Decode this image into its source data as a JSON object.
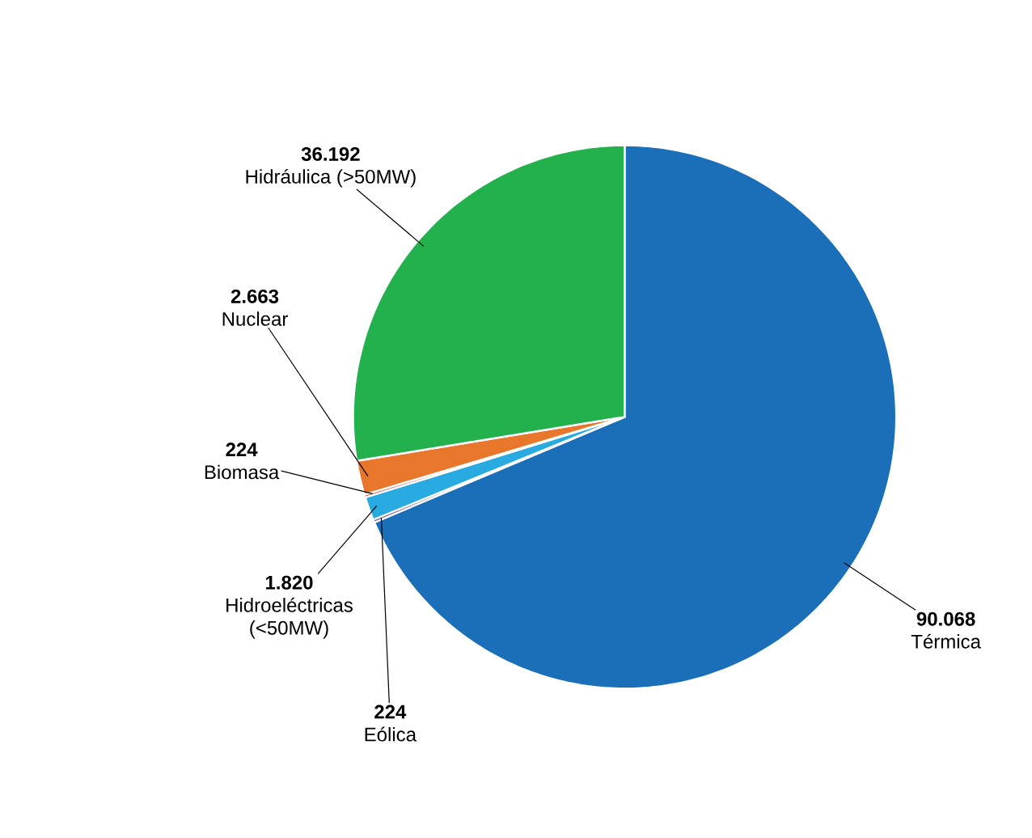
{
  "chart_data": {
    "type": "pie",
    "categories": [
      "Térmica",
      "Eólica",
      "Hidroeléctricas (<50MW)",
      "Biomasa",
      "Nuclear",
      "Hidráulica (>50MW)"
    ],
    "values": [
      90068,
      224,
      1820,
      224,
      2663,
      36192
    ],
    "value_labels": [
      "90.068",
      "224",
      "1.820",
      "224",
      "2.663",
      "36.192"
    ],
    "colors": [
      "#1a6fb8",
      "#6a3d9a",
      "#29aae1",
      "#e8322b",
      "#e8762b",
      "#22b14c"
    ]
  }
}
